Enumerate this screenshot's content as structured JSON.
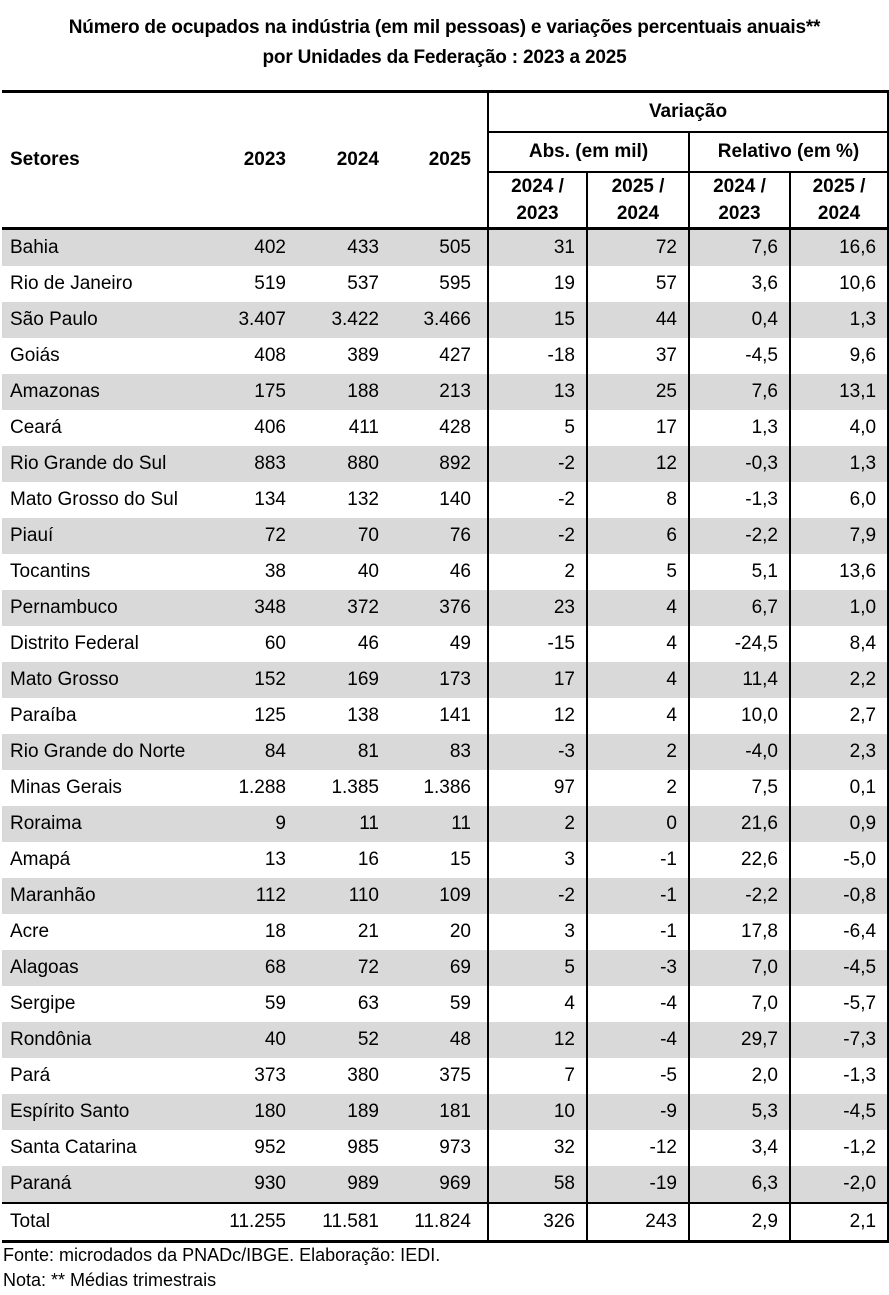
{
  "title": {
    "line1": "Número de ocupados na indústria (em mil pessoas) e variações percentuais anuais**",
    "line2": "por Unidades da Federação : 2023 a 2025"
  },
  "chart_data": {
    "type": "table",
    "title": "Número de ocupados na indústria (em mil pessoas) e variações percentuais anuais** por Unidades da Federação : 2023 a 2025",
    "header": {
      "setores": "Setores",
      "years": [
        "2023",
        "2024",
        "2025"
      ],
      "variacao": "Variação",
      "abs": "Abs. (em mil)",
      "relativo": "Relativo (em %)",
      "sub": [
        "2024 /\n2023",
        "2025 /\n2024",
        "2024 /\n2023",
        "2025 /\n2024"
      ]
    },
    "columns": [
      "Setores",
      "2023",
      "2024",
      "2025",
      "Variação Abs. (em mil) 2024/2023",
      "Variação Abs. (em mil) 2025/2024",
      "Variação Relativo (em %) 2024/2023",
      "Variação Relativo (em %) 2025/2024"
    ],
    "rows": [
      {
        "name": "Bahia",
        "values": [
          "402",
          "433",
          "505",
          "31",
          "72",
          "7,6",
          "16,6"
        ]
      },
      {
        "name": "Rio de Janeiro",
        "values": [
          "519",
          "537",
          "595",
          "19",
          "57",
          "3,6",
          "10,6"
        ]
      },
      {
        "name": "São Paulo",
        "values": [
          "3.407",
          "3.422",
          "3.466",
          "15",
          "44",
          "0,4",
          "1,3"
        ]
      },
      {
        "name": "Goiás",
        "values": [
          "408",
          "389",
          "427",
          "-18",
          "37",
          "-4,5",
          "9,6"
        ]
      },
      {
        "name": "Amazonas",
        "values": [
          "175",
          "188",
          "213",
          "13",
          "25",
          "7,6",
          "13,1"
        ]
      },
      {
        "name": "Ceará",
        "values": [
          "406",
          "411",
          "428",
          "5",
          "17",
          "1,3",
          "4,0"
        ]
      },
      {
        "name": "Rio Grande do Sul",
        "values": [
          "883",
          "880",
          "892",
          "-2",
          "12",
          "-0,3",
          "1,3"
        ]
      },
      {
        "name": "Mato Grosso do Sul",
        "values": [
          "134",
          "132",
          "140",
          "-2",
          "8",
          "-1,3",
          "6,0"
        ]
      },
      {
        "name": "Piauí",
        "values": [
          "72",
          "70",
          "76",
          "-2",
          "6",
          "-2,2",
          "7,9"
        ]
      },
      {
        "name": "Tocantins",
        "values": [
          "38",
          "40",
          "46",
          "2",
          "5",
          "5,1",
          "13,6"
        ]
      },
      {
        "name": "Pernambuco",
        "values": [
          "348",
          "372",
          "376",
          "23",
          "4",
          "6,7",
          "1,0"
        ]
      },
      {
        "name": "Distrito Federal",
        "values": [
          "60",
          "46",
          "49",
          "-15",
          "4",
          "-24,5",
          "8,4"
        ]
      },
      {
        "name": "Mato Grosso",
        "values": [
          "152",
          "169",
          "173",
          "17",
          "4",
          "11,4",
          "2,2"
        ]
      },
      {
        "name": "Paraíba",
        "values": [
          "125",
          "138",
          "141",
          "12",
          "4",
          "10,0",
          "2,7"
        ]
      },
      {
        "name": "Rio Grande do Norte",
        "values": [
          "84",
          "81",
          "83",
          "-3",
          "2",
          "-4,0",
          "2,3"
        ]
      },
      {
        "name": "Minas Gerais",
        "values": [
          "1.288",
          "1.385",
          "1.386",
          "97",
          "2",
          "7,5",
          "0,1"
        ]
      },
      {
        "name": "Roraima",
        "values": [
          "9",
          "11",
          "11",
          "2",
          "0",
          "21,6",
          "0,9"
        ]
      },
      {
        "name": "Amapá",
        "values": [
          "13",
          "16",
          "15",
          "3",
          "-1",
          "22,6",
          "-5,0"
        ]
      },
      {
        "name": "Maranhão",
        "values": [
          "112",
          "110",
          "109",
          "-2",
          "-1",
          "-2,2",
          "-0,8"
        ]
      },
      {
        "name": "Acre",
        "values": [
          "18",
          "21",
          "20",
          "3",
          "-1",
          "17,8",
          "-6,4"
        ]
      },
      {
        "name": "Alagoas",
        "values": [
          "68",
          "72",
          "69",
          "5",
          "-3",
          "7,0",
          "-4,5"
        ]
      },
      {
        "name": "Sergipe",
        "values": [
          "59",
          "63",
          "59",
          "4",
          "-4",
          "7,0",
          "-5,7"
        ]
      },
      {
        "name": "Rondônia",
        "values": [
          "40",
          "52",
          "48",
          "12",
          "-4",
          "29,7",
          "-7,3"
        ]
      },
      {
        "name": "Pará",
        "values": [
          "373",
          "380",
          "375",
          "7",
          "-5",
          "2,0",
          "-1,3"
        ]
      },
      {
        "name": "Espírito Santo",
        "values": [
          "180",
          "189",
          "181",
          "10",
          "-9",
          "5,3",
          "-4,5"
        ]
      },
      {
        "name": "Santa Catarina",
        "values": [
          "952",
          "985",
          "973",
          "32",
          "-12",
          "3,4",
          "-1,2"
        ]
      },
      {
        "name": "Paraná",
        "values": [
          "930",
          "989",
          "969",
          "58",
          "-19",
          "6,3",
          "-2,0"
        ]
      }
    ],
    "total_row": {
      "name": "Total",
      "values": [
        "11.255",
        "11.581",
        "11.824",
        "326",
        "243",
        "2,9",
        "2,1"
      ]
    },
    "layout": {
      "row_shading": "alternating starting shaded",
      "vertical_grid": "only in Variação section"
    }
  },
  "footer": {
    "fonte": "Fonte: microdados da PNADc/IBGE. Elaboração: IEDI.",
    "nota": "Nota: ** Médias trimestrais"
  },
  "colors": {
    "row_shade": "#d9d9d9",
    "border": "#000000",
    "background": "#ffffff",
    "text": "#000000"
  }
}
